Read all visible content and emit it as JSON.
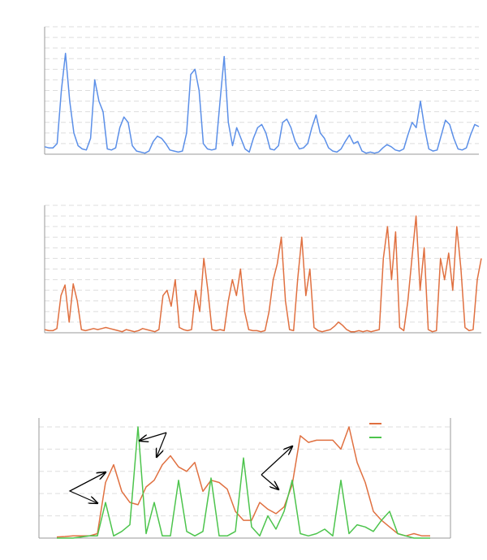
{
  "chart_data": [
    {
      "type": "line",
      "color": "#5b8fe8",
      "ylim": [
        0,
        12
      ],
      "yticks": [
        0,
        1,
        2,
        3,
        4,
        5,
        6,
        7,
        8,
        9,
        10,
        11,
        12
      ],
      "grid": true,
      "values": [
        0.7,
        0.6,
        0.6,
        1.0,
        6,
        9.5,
        5,
        2,
        0.8,
        0.5,
        0.4,
        1.5,
        7,
        5,
        4,
        0.5,
        0.4,
        0.6,
        2.5,
        3.5,
        3,
        0.8,
        0.3,
        0.2,
        0.1,
        0.3,
        1.2,
        1.7,
        1.5,
        1.0,
        0.4,
        0.3,
        0.2,
        0.3,
        2,
        7.5,
        8,
        6,
        1,
        0.5,
        0.4,
        0.5,
        5,
        9.2,
        3,
        0.8,
        2.5,
        1.5,
        0.5,
        0.2,
        1.5,
        2.5,
        2.8,
        2,
        0.5,
        0.4,
        0.8,
        3,
        3.3,
        2.5,
        1.2,
        0.5,
        0.6,
        1,
        2.5,
        3.7,
        2,
        1.5,
        0.6,
        0.3,
        0.2,
        0.5,
        1.2,
        1.8,
        1,
        1.2,
        0.3,
        0.1,
        0.2,
        0.1,
        0.2,
        0.6,
        0.9,
        0.7,
        0.4,
        0.3,
        0.5,
        1.8,
        3,
        2.5,
        5,
        2.5,
        0.5,
        0.3,
        0.4,
        1.8,
        3.2,
        2.8,
        1.5,
        0.5,
        0.4,
        0.6,
        1.8,
        2.8,
        2.6
      ]
    },
    {
      "type": "line",
      "color": "#e07040",
      "ylim": [
        0,
        12
      ],
      "yticks": [
        0,
        1,
        2,
        3,
        4,
        5,
        6,
        7,
        8,
        9,
        10,
        11,
        12
      ],
      "grid": true,
      "values": [
        0.3,
        0.2,
        0.2,
        0.4,
        3.5,
        4.5,
        1,
        4.6,
        3,
        0.3,
        0.2,
        0.3,
        0.4,
        0.3,
        0.4,
        0.5,
        0.4,
        0.3,
        0.2,
        0.1,
        0.3,
        0.2,
        0.1,
        0.2,
        0.4,
        0.3,
        0.2,
        0.1,
        0.3,
        3.5,
        4,
        2.5,
        5,
        0.5,
        0.3,
        0.2,
        0.3,
        4,
        2,
        7,
        4,
        0.3,
        0.2,
        0.3,
        0.2,
        3,
        5,
        3.5,
        6,
        2,
        0.3,
        0.2,
        0.2,
        0.1,
        0.2,
        2,
        5,
        6.5,
        9,
        3,
        0.3,
        0.2,
        5,
        9,
        3.5,
        6,
        0.5,
        0.2,
        0.1,
        0.2,
        0.3,
        0.6,
        1,
        0.7,
        0.3,
        0.1,
        0.1,
        0.2,
        0.1,
        0.2,
        0.1,
        0.2,
        0.3,
        7,
        10,
        5,
        9.5,
        0.5,
        0.2,
        3,
        7,
        11,
        4,
        8,
        0.3,
        0.1,
        0.2,
        7,
        5,
        7.5,
        4,
        10,
        6,
        0.5,
        0.2,
        0.3,
        5,
        7
      ]
    },
    {
      "type": "line",
      "ylim": [
        0,
        5.4
      ],
      "yticks": [
        0,
        1,
        2,
        3,
        4,
        5
      ],
      "xlim": [
        48,
        555
      ],
      "grid": true,
      "x": [
        70,
        80,
        90,
        100,
        110,
        120,
        130,
        140,
        150,
        160,
        170,
        180,
        190,
        200,
        210,
        220,
        230,
        240,
        250,
        260,
        270,
        280,
        290,
        300,
        310,
        320,
        330,
        340,
        350,
        360,
        370,
        380,
        390,
        400,
        410,
        420,
        430,
        440,
        450,
        460,
        470,
        480,
        490,
        500,
        510,
        520,
        530
      ],
      "series": [
        {
          "color": "#e07040",
          "values": [
            0.05,
            0.07,
            0.1,
            0.1,
            0.1,
            0.2,
            2.5,
            3.3,
            2.1,
            1.6,
            1.5,
            2.3,
            2.6,
            3.3,
            3.7,
            3.2,
            3.0,
            3.4,
            2.1,
            2.6,
            2.5,
            2.2,
            1.2,
            0.8,
            0.8,
            1.6,
            1.3,
            1.1,
            1.4,
            2.4,
            4.6,
            4.3,
            4.4,
            4.4,
            4.4,
            4.0,
            5.0,
            3.4,
            2.5,
            1.2,
            0.8,
            0.5,
            0.2,
            0.1,
            0.2,
            0.1,
            0.1
          ]
        },
        {
          "color": "#4cc44c",
          "values": [
            0,
            0,
            0,
            0.05,
            0.1,
            0.1,
            1.6,
            0.1,
            0.3,
            0.6,
            5.0,
            0.2,
            1.6,
            0.1,
            0.1,
            2.6,
            0.3,
            0.1,
            0.3,
            2.7,
            0.1,
            0.1,
            0.3,
            3.6,
            0.5,
            0.1,
            1.0,
            0.4,
            1.2,
            2.6,
            0.2,
            0.1,
            0.2,
            0.4,
            0.1,
            2.6,
            0.2,
            0.6,
            0.5,
            0.3,
            0.8,
            1.2,
            0.2,
            0.1,
            0,
            0,
            0
          ]
        }
      ]
    }
  ]
}
